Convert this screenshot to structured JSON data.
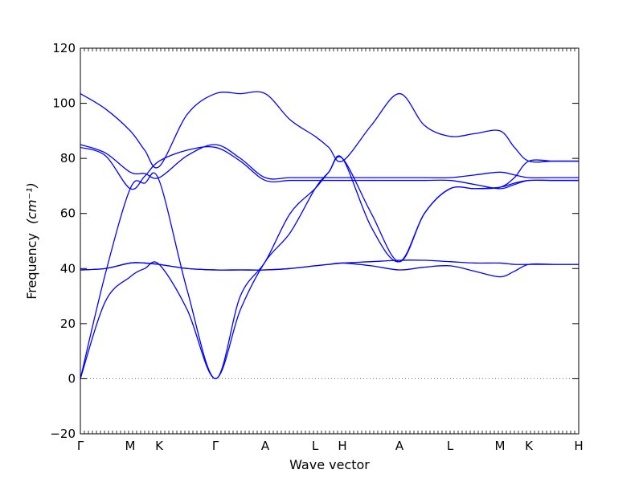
{
  "chart_data": {
    "type": "line",
    "xlabel": "Wave vector",
    "ylabel": "Frequency",
    "ylabel_unit": "(cm⁻¹)",
    "ylim": [
      -20,
      120
    ],
    "yticks": [
      -20,
      0,
      20,
      40,
      60,
      80,
      100,
      120
    ],
    "x_path": [
      "Γ",
      "M",
      "K",
      "Γ",
      "A",
      "L",
      "H",
      "A",
      "L",
      "M",
      "K",
      "H"
    ],
    "x_ticks_pos": [
      0,
      62,
      98,
      168,
      230,
      292,
      326,
      397,
      460,
      522,
      558,
      620
    ],
    "zero_line": true,
    "colors": {
      "line": "#0000ff",
      "zero": "#666666"
    },
    "series": [
      {
        "x": [
          0,
          31,
          62,
          80,
          98,
          133,
          168,
          199,
          230,
          261,
          292,
          309,
          326,
          362,
          397,
          428,
          460,
          491,
          522,
          540,
          558,
          589,
          620
        ],
        "y": [
          0,
          38,
          69,
          71,
          72,
          32,
          0,
          30,
          42.5,
          60,
          69,
          75,
          80,
          55,
          42.5,
          60,
          69,
          69,
          69.5,
          71,
          72,
          72,
          72
        ]
      },
      {
        "x": [
          0,
          31,
          62,
          80,
          98,
          133,
          168,
          199,
          230,
          261,
          292,
          309,
          326,
          362,
          397,
          428,
          460,
          491,
          522,
          540,
          558,
          589,
          620
        ],
        "y": [
          0,
          28,
          37,
          40,
          41.5,
          25,
          0,
          25,
          42.5,
          53,
          69,
          75,
          80,
          60,
          42.5,
          60,
          69,
          69,
          69.5,
          73,
          79,
          79,
          79
        ]
      },
      {
        "x": [
          0,
          31,
          62,
          80,
          98,
          133,
          168,
          199,
          230,
          261,
          292,
          309,
          326,
          362,
          397,
          428,
          460,
          491,
          522,
          540,
          558,
          589,
          620
        ],
        "y": [
          103.5,
          98,
          90,
          83,
          77,
          96,
          103.5,
          103.5,
          103.5,
          94,
          88,
          84,
          79,
          92,
          103.5,
          92,
          88,
          89,
          90,
          84,
          79,
          79,
          79
        ]
      },
      {
        "x": [
          0,
          31,
          62,
          80,
          98,
          133,
          168,
          199,
          230,
          261,
          292,
          309,
          326,
          362,
          397,
          428,
          460,
          491,
          522,
          540,
          558,
          589,
          620
        ],
        "y": [
          85,
          82,
          75,
          74.5,
          73,
          81,
          85,
          80,
          73,
          73,
          73,
          73,
          73,
          73,
          73,
          73,
          73,
          74,
          75,
          74,
          73,
          73,
          73
        ]
      },
      {
        "x": [
          0,
          31,
          62,
          80,
          98,
          133,
          168,
          199,
          230,
          261,
          292,
          309,
          326,
          362,
          397,
          428,
          460,
          491,
          522,
          540,
          558,
          589,
          620
        ],
        "y": [
          84,
          81,
          69,
          73.5,
          79,
          83,
          84,
          79,
          72,
          72,
          72,
          72,
          72,
          72,
          72,
          72,
          72,
          70.5,
          69,
          70.5,
          72,
          72,
          72
        ]
      },
      {
        "x": [
          0,
          31,
          62,
          80,
          98,
          133,
          168,
          199,
          230,
          261,
          292,
          309,
          326,
          362,
          397,
          428,
          460,
          491,
          522,
          540,
          558,
          589,
          620
        ],
        "y": [
          39.5,
          40,
          42,
          42,
          41.5,
          40,
          39.5,
          39.5,
          39.5,
          40,
          41,
          41.5,
          42,
          42.5,
          43,
          43,
          42.5,
          42,
          42,
          41.5,
          41.5,
          41.5,
          41.5
        ]
      },
      {
        "x": [
          0,
          31,
          62,
          80,
          98,
          133,
          168,
          199,
          230,
          261,
          292,
          309,
          326,
          362,
          397,
          428,
          460,
          491,
          522,
          540,
          558,
          589,
          620
        ],
        "y": [
          39.5,
          40,
          42,
          42,
          41.5,
          40,
          39.5,
          39.5,
          39.5,
          40,
          41,
          41.5,
          42,
          41,
          39.5,
          40.5,
          41,
          39,
          37,
          39,
          41.5,
          41.5,
          41.5
        ]
      }
    ]
  }
}
